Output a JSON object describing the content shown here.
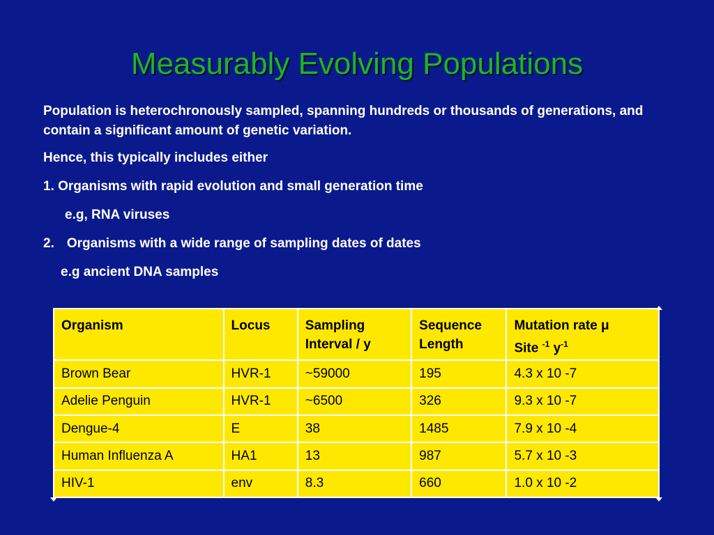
{
  "slide": {
    "title": "Measurably Evolving Populations",
    "intro": "Population is heterochronously sampled, spanning hundreds or thousands of generations, and contain a significant amount of genetic variation.",
    "hence": "Hence, this typically includes either",
    "item1": "1. Organisms with rapid evolution and small generation time",
    "item1_example": "e.g, RNA viruses",
    "item2_number": "2.",
    "item2": "Organisms with a wide range of sampling dates of dates",
    "item2_example": "e.g  ancient DNA samples"
  },
  "table": {
    "headers": {
      "organism": "Organism",
      "locus": "Locus",
      "sampling_line1": "Sampling",
      "sampling_line2": "Interval / y",
      "sequence_line1": "Sequence",
      "sequence_line2": "Length",
      "mutation_line1": "Mutation rate μ",
      "mutation_site": "Site",
      "mutation_sup1": "-1",
      "mutation_y": "y",
      "mutation_sup2": "-1"
    },
    "rows": [
      {
        "organism": "Brown Bear",
        "locus": "HVR-1",
        "interval": "~59000",
        "length": "195",
        "rate": "4.3 x 10 -7"
      },
      {
        "organism": "Adelie Penguin",
        "locus": "HVR-1",
        "interval": "~6500",
        "length": "326",
        "rate": "9.3 x 10 -7"
      },
      {
        "organism": "Dengue-4",
        "locus": "E",
        "interval": "38",
        "length": "1485",
        "rate": "7.9 x 10 -4"
      },
      {
        "organism": "Human Influenza A",
        "locus": "HA1",
        "interval": "13",
        "length": "987",
        "rate": "5.7 x 10 -3"
      },
      {
        "organism": "HIV-1",
        "locus": "env",
        "interval": "8.3",
        "length": "660",
        "rate": "1.0 x 10 -2"
      }
    ]
  },
  "colors": {
    "background": "#0a1a8c",
    "title": "#1db522",
    "table_fill": "#ffe800",
    "table_border": "#ffffff"
  }
}
